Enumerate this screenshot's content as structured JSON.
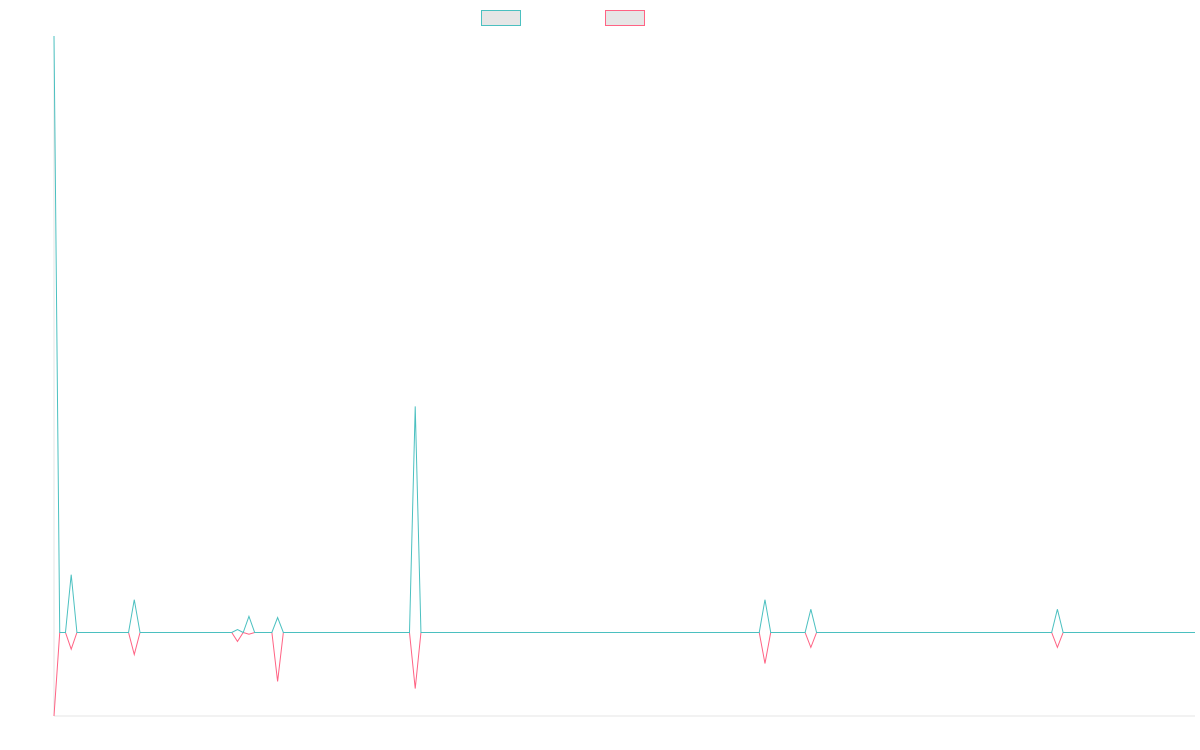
{
  "chart_data": {
    "type": "line",
    "categories": [
      null,
      null,
      null,
      null,
      null,
      null,
      null,
      null,
      null,
      null,
      null,
      null,
      null,
      null,
      null,
      null,
      null,
      null,
      null,
      null,
      null,
      null,
      null,
      null,
      null,
      null,
      null,
      null,
      null,
      null,
      null,
      null,
      null,
      null,
      null,
      null,
      null,
      null,
      null,
      null,
      null,
      null,
      null,
      null,
      null,
      null,
      null,
      null,
      null,
      null,
      null,
      null,
      null,
      null,
      null,
      null,
      null,
      null,
      null,
      null,
      null,
      null,
      null,
      null,
      null,
      null,
      null,
      null,
      null,
      null,
      null,
      null,
      null,
      null,
      null,
      null,
      null,
      null,
      null,
      null,
      null,
      null,
      null,
      null,
      null,
      null,
      null,
      null,
      null,
      null,
      null,
      null,
      null,
      null,
      null,
      null,
      null,
      null,
      null,
      null,
      null,
      null,
      null,
      null,
      null,
      null,
      null,
      null,
      null,
      null,
      null,
      null,
      null,
      null,
      null,
      null,
      null,
      null,
      null,
      null,
      null,
      null,
      null,
      null,
      null,
      null,
      null,
      null,
      null,
      null,
      null,
      null,
      null,
      null,
      null,
      null,
      null,
      null,
      null,
      null,
      null,
      null,
      null,
      null,
      null,
      null,
      null,
      null,
      null,
      null,
      null,
      null,
      null,
      null,
      null,
      null,
      null,
      null,
      null,
      null,
      null,
      null,
      null,
      null,
      null,
      null,
      null,
      null,
      null,
      null,
      null,
      null,
      null,
      null,
      null,
      null,
      null,
      null,
      null,
      null,
      null,
      null,
      null,
      null,
      null,
      null,
      null,
      null,
      null,
      null,
      null,
      null,
      null,
      null,
      null,
      null,
      null,
      null,
      null,
      null
    ],
    "series": [
      {
        "color": "#4bc0c0",
        "values": [
          100,
          0,
          0,
          9.7,
          0,
          0,
          0,
          0,
          0,
          0,
          0,
          0,
          0,
          0,
          5.5,
          0,
          0,
          0,
          0,
          0,
          0,
          0,
          0,
          0,
          0,
          0,
          0,
          0,
          0,
          0,
          0,
          0,
          0.5,
          0,
          2.7,
          0,
          0,
          0,
          0,
          2.5,
          0,
          0,
          0,
          0,
          0,
          0,
          0,
          0,
          0,
          0,
          0,
          0,
          0,
          0,
          0,
          0,
          0,
          0,
          0,
          0,
          0,
          0,
          0,
          37.9,
          0,
          0,
          0,
          0,
          0,
          0,
          0,
          0,
          0,
          0,
          0,
          0,
          0,
          0,
          0,
          0,
          0,
          0,
          0,
          0,
          0,
          0,
          0,
          0,
          0,
          0,
          0,
          0,
          0,
          0,
          0,
          0,
          0,
          0,
          0,
          0,
          0,
          0,
          0,
          0,
          0,
          0,
          0,
          0,
          0,
          0,
          0,
          0,
          0,
          0,
          0,
          0,
          0,
          0,
          0,
          0,
          0,
          0,
          0,
          0,
          5.5,
          0,
          0,
          0,
          0,
          0,
          0,
          0,
          3.9,
          0,
          0,
          0,
          0,
          0,
          0,
          0,
          0,
          0,
          0,
          0,
          0,
          0,
          0,
          0,
          0,
          0,
          0,
          0,
          0,
          0,
          0,
          0,
          0,
          0,
          0,
          0,
          0,
          0,
          0,
          0,
          0,
          0,
          0,
          0,
          0,
          0,
          0,
          0,
          0,
          0,
          0,
          3.9,
          0,
          0,
          0,
          0,
          0,
          0,
          0,
          0,
          0,
          0,
          0,
          0,
          0,
          0,
          0,
          0,
          0,
          0,
          0,
          0,
          0,
          0,
          0,
          0
        ]
      },
      {
        "color": "#ff6384",
        "values": [
          -14,
          0,
          0,
          -2.8,
          0,
          0,
          0,
          0,
          0,
          0,
          0,
          0,
          0,
          0,
          -3.7,
          0,
          0,
          0,
          0,
          0,
          0,
          0,
          0,
          0,
          0,
          0,
          0,
          0,
          0,
          0,
          0,
          0,
          -1.5,
          0,
          -0.3,
          0,
          0,
          0,
          0,
          -8.2,
          0,
          0,
          0,
          0,
          0,
          0,
          0,
          0,
          0,
          0,
          0,
          0,
          0,
          0,
          0,
          0,
          0,
          0,
          0,
          0,
          0,
          0,
          0,
          -9.4,
          0,
          0,
          0,
          0,
          0,
          0,
          0,
          0,
          0,
          0,
          0,
          0,
          0,
          0,
          0,
          0,
          0,
          0,
          0,
          0,
          0,
          0,
          0,
          0,
          0,
          0,
          0,
          0,
          0,
          0,
          0,
          0,
          0,
          0,
          0,
          0,
          0,
          0,
          0,
          0,
          0,
          0,
          0,
          0,
          0,
          0,
          0,
          0,
          0,
          0,
          0,
          0,
          0,
          0,
          0,
          0,
          0,
          0,
          0,
          0,
          -5.2,
          0,
          0,
          0,
          0,
          0,
          0,
          0,
          -2.5,
          0,
          0,
          0,
          0,
          0,
          0,
          0,
          0,
          0,
          0,
          0,
          0,
          0,
          0,
          0,
          0,
          0,
          0,
          0,
          0,
          0,
          0,
          0,
          0,
          0,
          0,
          0,
          0,
          0,
          0,
          0,
          0,
          0,
          0,
          0,
          0,
          0,
          0,
          0,
          0,
          0,
          0,
          -2.5,
          0,
          0,
          0,
          0,
          0,
          0,
          0,
          0,
          0,
          0,
          0,
          0,
          0,
          0,
          0,
          0,
          0,
          0,
          0,
          0,
          0,
          0,
          0,
          0
        ]
      }
    ],
    "ylim": [
      -14,
      100
    ]
  }
}
